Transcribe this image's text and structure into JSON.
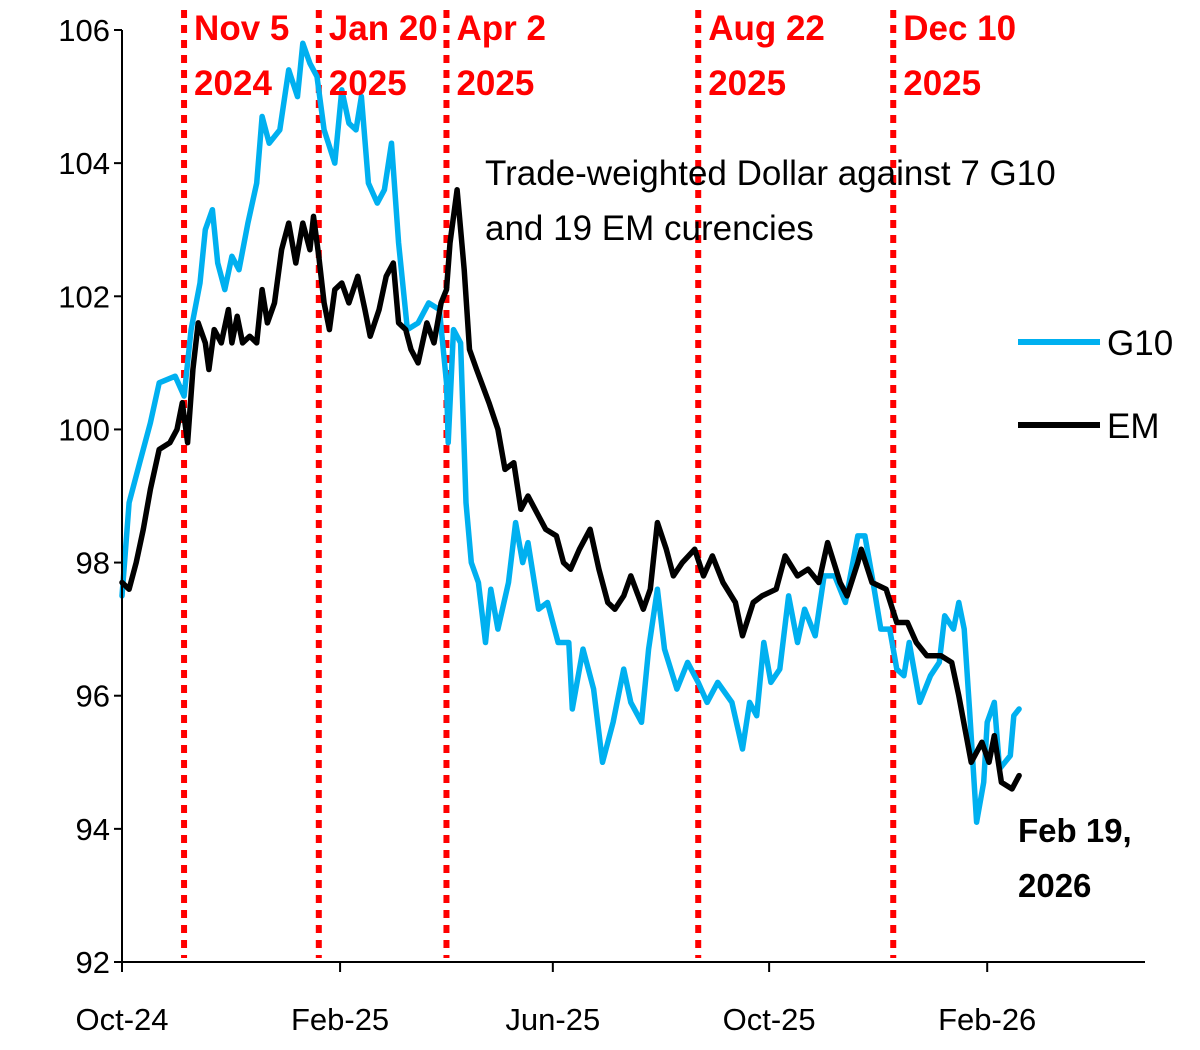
{
  "chart_data": {
    "type": "line",
    "title": "",
    "annotation": [
      "Trade-weighted Dollar against 7 G10",
      "and 19 EM curencies"
    ],
    "x_unit": "days since 2024-10-01",
    "xlim": [
      0,
      577
    ],
    "ylim": [
      92,
      106
    ],
    "yticks": [
      92,
      94,
      96,
      98,
      100,
      102,
      104,
      106
    ],
    "xticks": [
      {
        "day": 0,
        "label": "Oct-24"
      },
      {
        "day": 123,
        "label": "Feb-25"
      },
      {
        "day": 243,
        "label": "Jun-25"
      },
      {
        "day": 365,
        "label": "Oct-25"
      },
      {
        "day": 488,
        "label": "Feb-26"
      }
    ],
    "grid": false,
    "legend_position": "right",
    "event_lines": [
      {
        "day": 35,
        "label1": "Nov 5",
        "label2": "2024"
      },
      {
        "day": 111,
        "label1": "Jan 20",
        "label2": "2025"
      },
      {
        "day": 183,
        "label1": "Apr 2",
        "label2": "2025"
      },
      {
        "day": 325,
        "label1": "Aug 22",
        "label2": "2025"
      },
      {
        "day": 435,
        "label1": "Dec 10",
        "label2": "2025"
      }
    ],
    "end_label": [
      "Feb 19,",
      "2026"
    ],
    "series": [
      {
        "name": "G10",
        "color": "#00b0f0",
        "x": [
          0,
          4,
          10,
          16,
          21,
          30,
          35,
          39,
          44,
          47,
          51,
          54,
          58,
          62,
          66,
          71,
          76,
          79,
          83,
          89,
          94,
          99,
          102,
          106,
          110,
          114,
          120,
          124,
          128,
          132,
          135,
          139,
          144,
          148,
          152,
          156,
          161,
          167,
          173,
          179,
          183,
          184,
          187,
          191,
          194,
          197,
          201,
          205,
          208,
          212,
          218,
          222,
          226,
          229,
          235,
          240,
          246,
          252,
          254,
          260,
          266,
          271,
          277,
          283,
          287,
          293,
          297,
          302,
          306,
          313,
          319,
          325,
          330,
          336,
          344,
          350,
          354,
          358,
          362,
          366,
          371,
          376,
          381,
          385,
          391,
          396,
          402,
          408,
          415,
          419,
          423,
          428,
          433,
          437,
          441,
          444,
          450,
          456,
          461,
          464,
          469,
          472,
          475,
          478,
          482,
          486,
          488,
          492,
          495,
          501,
          503,
          506
        ],
        "y": [
          97.5,
          98.9,
          99.5,
          100.1,
          100.7,
          100.8,
          100.5,
          101.5,
          102.2,
          103.0,
          103.3,
          102.5,
          102.1,
          102.6,
          102.4,
          103.1,
          103.7,
          104.7,
          104.3,
          104.5,
          105.4,
          105.0,
          105.8,
          105.5,
          105.3,
          104.5,
          104.0,
          105.1,
          104.6,
          104.5,
          105.0,
          103.7,
          103.4,
          103.6,
          104.3,
          102.8,
          101.5,
          101.6,
          101.9,
          101.8,
          100.7,
          99.8,
          101.5,
          101.3,
          98.9,
          98.0,
          97.7,
          96.8,
          97.6,
          97.0,
          97.7,
          98.6,
          98.0,
          98.3,
          97.3,
          97.4,
          96.8,
          96.8,
          95.8,
          96.7,
          96.1,
          95.0,
          95.6,
          96.4,
          95.9,
          95.6,
          96.7,
          97.6,
          96.7,
          96.1,
          96.5,
          96.2,
          95.9,
          96.2,
          95.9,
          95.2,
          95.9,
          95.7,
          96.8,
          96.2,
          96.4,
          97.5,
          96.8,
          97.3,
          96.9,
          97.8,
          97.8,
          97.4,
          98.4,
          98.4,
          97.8,
          97.0,
          97.0,
          96.4,
          96.3,
          96.8,
          95.9,
          96.3,
          96.5,
          97.2,
          97.0,
          97.4,
          97.0,
          95.8,
          94.1,
          94.7,
          95.6,
          95.9,
          94.9,
          95.1,
          95.7,
          95.8
        ]
      },
      {
        "name": "EM",
        "color": "#000000",
        "x": [
          0,
          4,
          8,
          12,
          16,
          21,
          27,
          31,
          34,
          37,
          40,
          43,
          47,
          49,
          52,
          56,
          60,
          62,
          65,
          68,
          72,
          76,
          79,
          82,
          86,
          90,
          94,
          98,
          102,
          106,
          108,
          111,
          114,
          117,
          120,
          124,
          128,
          133,
          137,
          140,
          145,
          149,
          153,
          156,
          160,
          163,
          167,
          172,
          176,
          180,
          183,
          185,
          189,
          193,
          196,
          200,
          207,
          212,
          216,
          221,
          225,
          229,
          235,
          239,
          245,
          249,
          253,
          258,
          264,
          269,
          274,
          278,
          283,
          287,
          294,
          298,
          302,
          307,
          311,
          316,
          323,
          328,
          333,
          339,
          346,
          350,
          356,
          361,
          369,
          374,
          381,
          387,
          393,
          398,
          405,
          409,
          415,
          417,
          423,
          431,
          437,
          443,
          448,
          454,
          462,
          468,
          472,
          479,
          485,
          489,
          492,
          496,
          502,
          506
        ],
        "y": [
          97.7,
          97.6,
          98.0,
          98.5,
          99.1,
          99.7,
          99.8,
          100.0,
          100.4,
          99.8,
          100.9,
          101.6,
          101.3,
          100.9,
          101.5,
          101.3,
          101.8,
          101.3,
          101.7,
          101.3,
          101.4,
          101.3,
          102.1,
          101.6,
          101.9,
          102.7,
          103.1,
          102.5,
          103.1,
          102.7,
          103.2,
          102.6,
          101.9,
          101.5,
          102.1,
          102.2,
          101.9,
          102.3,
          101.8,
          101.4,
          101.8,
          102.3,
          102.5,
          101.6,
          101.5,
          101.2,
          101.0,
          101.6,
          101.3,
          101.9,
          102.1,
          102.8,
          103.6,
          102.4,
          101.2,
          100.9,
          100.4,
          100.0,
          99.4,
          99.5,
          98.8,
          99.0,
          98.7,
          98.5,
          98.4,
          98.0,
          97.9,
          98.2,
          98.5,
          97.9,
          97.4,
          97.3,
          97.5,
          97.8,
          97.3,
          97.6,
          98.6,
          98.2,
          97.8,
          98.0,
          98.2,
          97.8,
          98.1,
          97.7,
          97.4,
          96.9,
          97.4,
          97.5,
          97.6,
          98.1,
          97.8,
          97.9,
          97.7,
          98.3,
          97.7,
          97.5,
          98.0,
          98.2,
          97.7,
          97.6,
          97.1,
          97.1,
          96.8,
          96.6,
          96.6,
          96.5,
          96.0,
          95.0,
          95.3,
          95.0,
          95.4,
          94.7,
          94.6,
          94.8
        ]
      }
    ]
  }
}
